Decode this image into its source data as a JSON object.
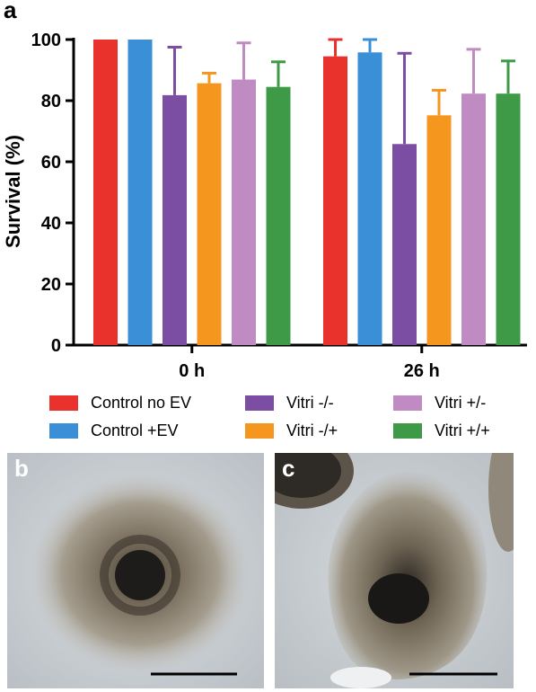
{
  "panel_a_label": "a",
  "panel_b_label": "b",
  "panel_c_label": "c",
  "chart_data": {
    "type": "bar",
    "ylabel": "Survival (%)",
    "ylim": [
      0,
      100
    ],
    "yticks": [
      0,
      20,
      40,
      60,
      80,
      100
    ],
    "categories": [
      "0 h",
      "26 h"
    ],
    "error_bars": "upper",
    "series": [
      {
        "name": "Control no EV",
        "color": "#e8322b",
        "values": [
          100,
          94.5
        ],
        "errors": [
          0,
          5.5
        ]
      },
      {
        "name": "Control +EV",
        "color": "#3a8fd6",
        "values": [
          100,
          95.8
        ],
        "errors": [
          0,
          4.2
        ]
      },
      {
        "name": "Vitri -/-",
        "color": "#7b4ea3",
        "values": [
          81.8,
          65.8
        ],
        "errors": [
          15.7,
          29.7
        ]
      },
      {
        "name": "Vitri -/+",
        "color": "#f5961f",
        "values": [
          85.7,
          75.2
        ],
        "errors": [
          3.3,
          8.2
        ]
      },
      {
        "name": "Vitri +/-",
        "color": "#c08ac3",
        "values": [
          86.9,
          82.3
        ],
        "errors": [
          12.0,
          14.5
        ]
      },
      {
        "name": "Vitri +/+",
        "color": "#3f9a48",
        "values": [
          84.5,
          82.3
        ],
        "errors": [
          8.2,
          10.7
        ]
      }
    ],
    "legend_placement": "bottom",
    "grid": false
  }
}
